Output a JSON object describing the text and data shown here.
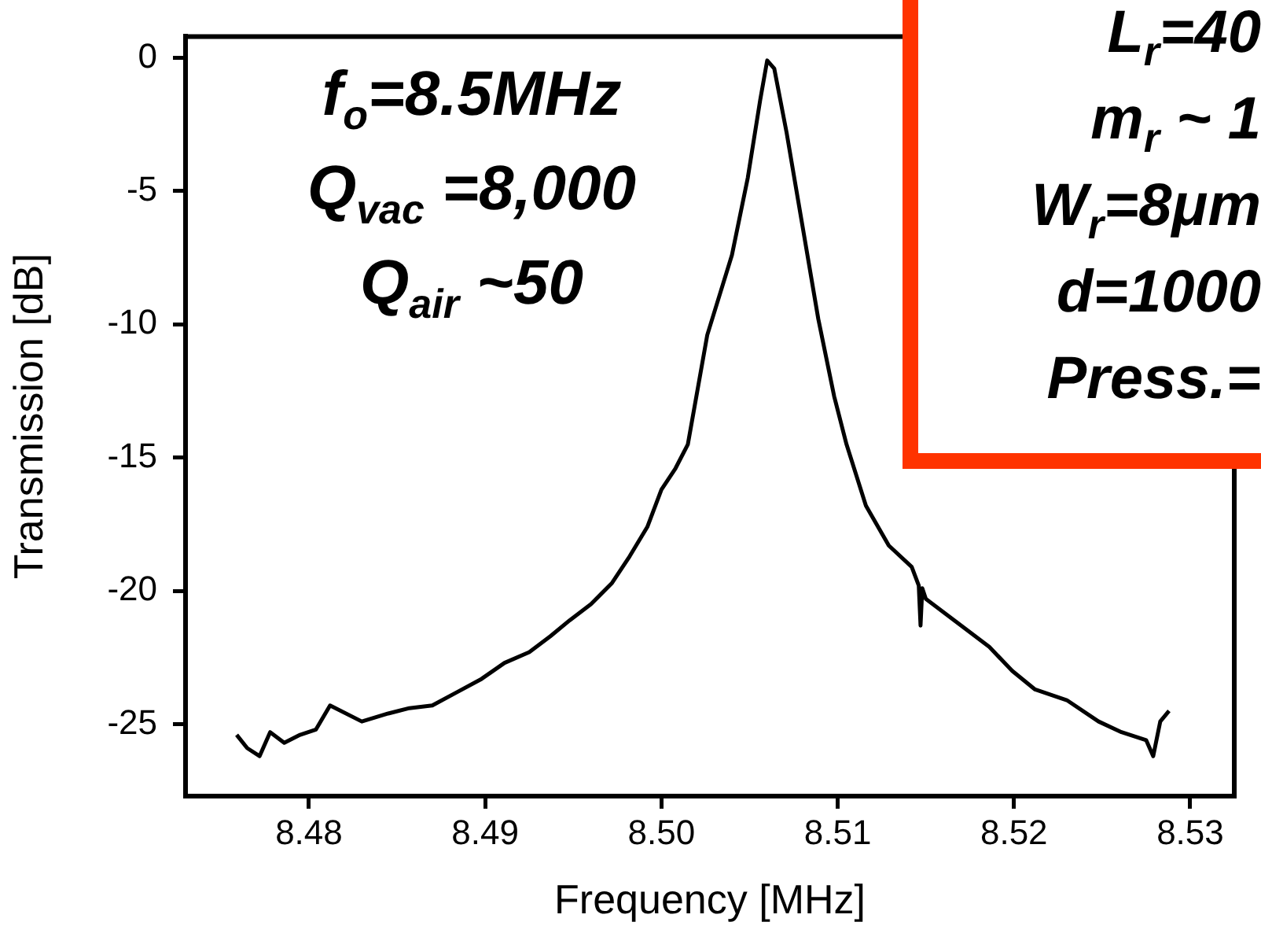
{
  "chart_data": {
    "type": "line",
    "xlabel": "Frequency [MHz]",
    "ylabel": "Transmission [dB]",
    "annotations": [
      "f$_{o}$=8.5MHz",
      "Q$_{vac}$ =8,000",
      "Q$_{air}$ ~50",
      "L$_{r}$=40",
      "m$_{r}$ ~ 1",
      "W$_{r}$=8μm",
      "d=1000",
      "Press.="
    ],
    "xlim": [
      8.473,
      8.5325
    ],
    "xticks": [
      {
        "value": 8.48,
        "label": "8.48"
      },
      {
        "value": 8.49,
        "label": "8.49"
      },
      {
        "value": 8.5,
        "label": "8.50"
      },
      {
        "value": 8.51,
        "label": "8.51"
      },
      {
        "value": 8.52,
        "label": "8.52"
      },
      {
        "value": 8.53,
        "label": "8.53"
      }
    ],
    "ylim": [
      -27.7,
      0.8
    ],
    "yticks": [
      -25,
      -20,
      -15,
      -10,
      -5,
      0
    ],
    "grid": false,
    "legend": false,
    "marker": "none",
    "line_style": "solid",
    "series": [
      {
        "color": "#000000",
        "x": [
          8.4759,
          8.4765,
          8.4772,
          8.4778,
          8.4786,
          8.4795,
          8.4804,
          8.4812,
          8.483,
          8.4845,
          8.4857,
          8.487,
          8.4884,
          8.4898,
          8.4911,
          8.4925,
          8.4937,
          8.4948,
          8.496,
          8.4972,
          8.4982,
          8.4992,
          8.5,
          8.5008,
          8.5015,
          8.5026,
          8.504,
          8.5049,
          8.5056,
          8.506,
          8.5064,
          8.5071,
          8.508,
          8.5089,
          8.5098,
          8.5105,
          8.5116,
          8.5129,
          8.5142,
          8.5146,
          8.5147,
          8.5148,
          8.515,
          8.5168,
          8.5186,
          8.5199,
          8.5212,
          8.523,
          8.5248,
          8.5261,
          8.5275,
          8.5279,
          8.5283,
          8.5288
        ],
        "values": [
          -25.4,
          -25.9,
          -26.2,
          -25.3,
          -25.7,
          -25.4,
          -25.2,
          -24.3,
          -24.9,
          -24.6,
          -24.4,
          -24.3,
          -23.8,
          -23.3,
          -22.7,
          -22.3,
          -21.7,
          -21.1,
          -20.5,
          -19.7,
          -18.7,
          -17.6,
          -16.2,
          -15.4,
          -14.5,
          -10.4,
          -7.4,
          -4.5,
          -1.6,
          -0.1,
          -0.4,
          -2.8,
          -6.3,
          -9.8,
          -12.7,
          -14.5,
          -16.8,
          -18.3,
          -19.1,
          -19.8,
          -21.3,
          -19.9,
          -20.3,
          -21.2,
          -22.1,
          -23.0,
          -23.7,
          -24.1,
          -24.9,
          -25.3,
          -25.6,
          -26.2,
          -24.9,
          -24.5
        ]
      }
    ]
  }
}
